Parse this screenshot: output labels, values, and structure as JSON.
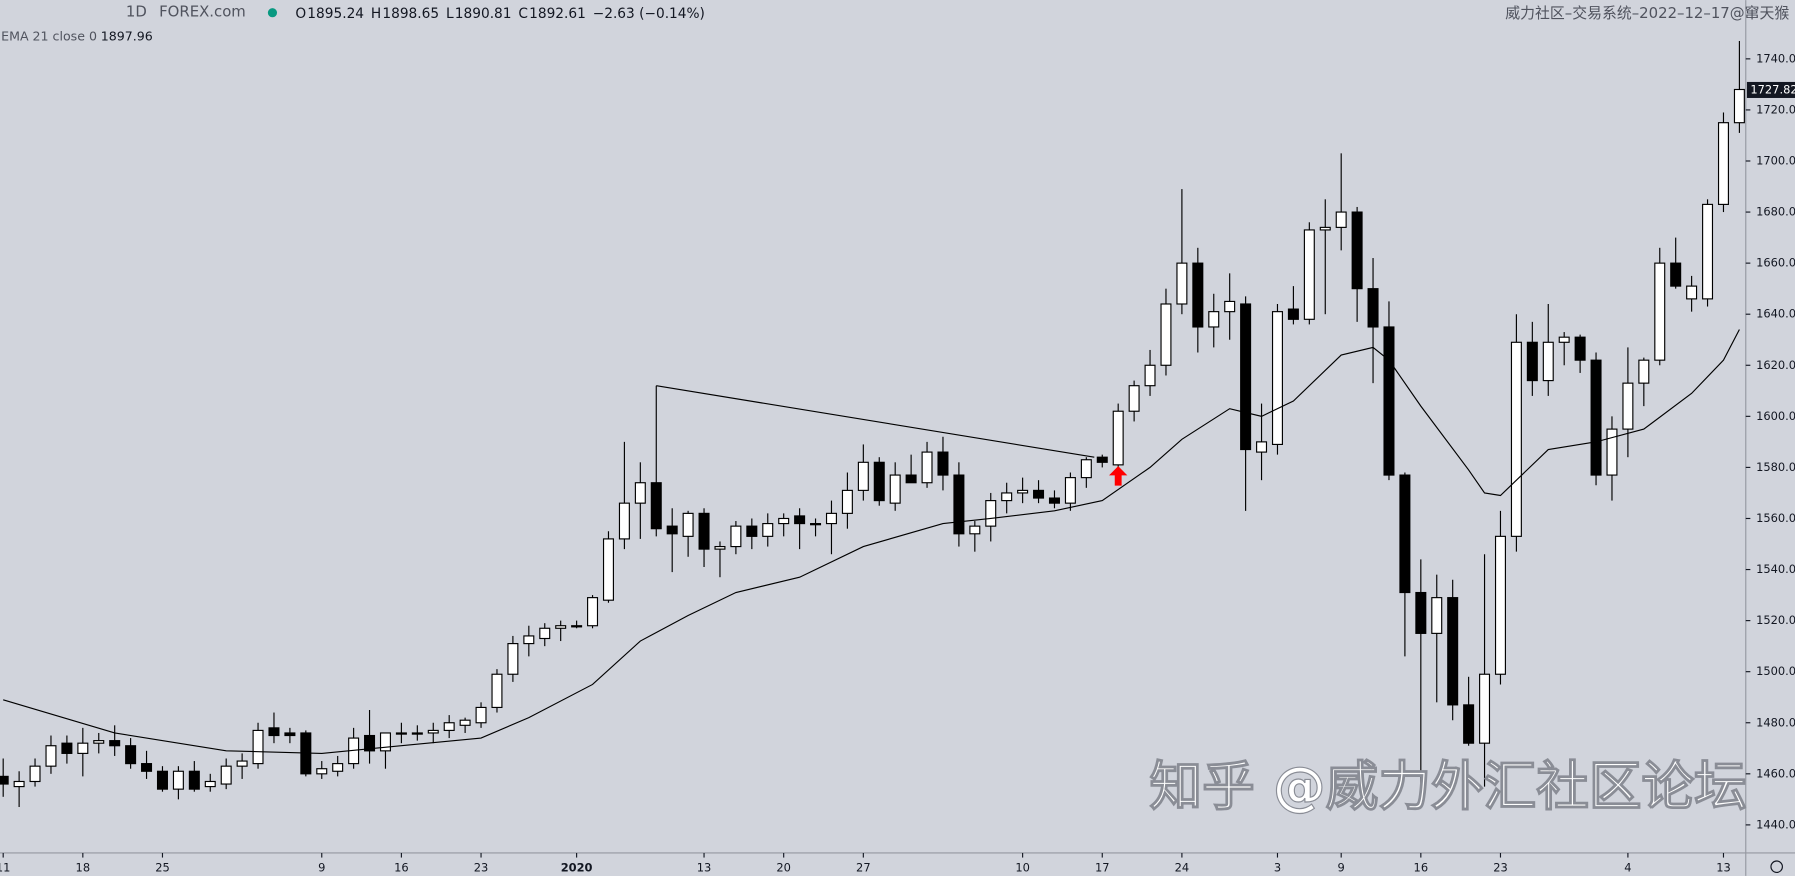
{
  "header": {
    "interval": "1D",
    "source": "FOREX.com",
    "ohlc": [
      {
        "label": "O",
        "value": "1895.24"
      },
      {
        "label": "H",
        "value": "1898.65"
      },
      {
        "label": "L",
        "value": "1890.81"
      },
      {
        "label": "C",
        "value": "1892.61"
      }
    ],
    "change": "−2.63 (−0.14%)",
    "credit": "威力社区–交易系统–2022–12–17@窜天猴",
    "indicator": "EMA 21 close 0",
    "indicator_value": "1897.96"
  },
  "watermark": "知乎 @威力外汇社区论坛",
  "chart_data": {
    "type": "candlestick",
    "x": [
      0,
      1,
      2,
      3,
      4,
      5,
      6,
      7,
      8,
      9,
      10,
      11,
      12,
      13,
      14,
      15,
      16,
      17,
      18,
      19,
      20,
      21,
      22,
      23,
      24,
      25,
      26,
      27,
      28,
      29,
      30,
      31,
      32,
      33,
      34,
      35,
      36,
      37,
      38,
      39,
      40,
      41,
      42,
      43,
      44,
      45,
      46,
      47,
      48,
      49,
      50,
      51,
      52,
      53,
      54,
      55,
      56,
      57,
      58,
      59,
      60,
      61,
      62,
      63,
      64,
      65,
      66,
      67,
      68,
      69,
      70,
      71,
      72,
      73,
      74,
      75,
      76,
      77,
      78,
      79,
      80,
      81,
      82,
      83,
      84,
      85,
      86,
      87,
      88,
      89,
      90,
      91,
      92,
      93,
      94,
      95,
      96,
      97,
      98,
      99,
      100,
      101,
      102,
      103,
      104,
      105,
      106,
      107,
      108,
      109
    ],
    "open": [
      1459,
      1455,
      1457,
      1463,
      1472,
      1468,
      1472,
      1473,
      1471,
      1464,
      1461,
      1454,
      1461,
      1455,
      1456,
      1463,
      1464,
      1478,
      1476,
      1476,
      1460,
      1461,
      1464,
      1475,
      1469,
      1476,
      1476,
      1476,
      1477,
      1479,
      1480,
      1486,
      1499,
      1511,
      1513,
      1517,
      1518,
      1518,
      1528,
      1552,
      1566,
      1574,
      1557,
      1553,
      1562,
      1548,
      1549,
      1557,
      1553,
      1558,
      1561,
      1558,
      1558,
      1562,
      1571,
      1582,
      1566,
      1577,
      1574,
      1586,
      1577,
      1554,
      1557,
      1567,
      1570,
      1571,
      1568,
      1566,
      1576,
      1584,
      1581,
      1602,
      1612,
      1620,
      1644,
      1660,
      1635,
      1641,
      1644,
      1586,
      1589,
      1642,
      1638,
      1673,
      1674,
      1680,
      1650,
      1635,
      1577,
      1531,
      1515,
      1529,
      1487,
      1472,
      1499,
      1553,
      1629,
      1614,
      1629,
      1631,
      1622,
      1577,
      1595,
      1613,
      1622,
      1660,
      1646,
      1646,
      1683,
      1715
    ],
    "high": [
      1466,
      1461,
      1466,
      1475,
      1475,
      1478,
      1476,
      1479,
      1474,
      1469,
      1463,
      1463,
      1465,
      1460,
      1466,
      1468,
      1480,
      1484,
      1478,
      1477,
      1465,
      1467,
      1478,
      1485,
      1476,
      1480,
      1479,
      1480,
      1483,
      1482,
      1488,
      1501,
      1514,
      1518,
      1519,
      1520,
      1520,
      1530,
      1555,
      1590,
      1582,
      1612,
      1564,
      1563,
      1564,
      1551,
      1559,
      1560,
      1562,
      1562,
      1564,
      1560,
      1567,
      1578,
      1589,
      1584,
      1582,
      1585,
      1590,
      1592,
      1582,
      1559,
      1570,
      1574,
      1576,
      1575,
      1571,
      1578,
      1584,
      1585,
      1605,
      1614,
      1626,
      1650,
      1689,
      1666,
      1648,
      1656,
      1647,
      1605,
      1644,
      1651,
      1676,
      1685,
      1703,
      1682,
      1662,
      1645,
      1578,
      1544,
      1538,
      1536,
      1498,
      1546,
      1563,
      1640,
      1637,
      1644,
      1633,
      1632,
      1625,
      1600,
      1627,
      1623,
      1666,
      1670,
      1655,
      1685,
      1719,
      1747
    ],
    "low": [
      1451,
      1447,
      1455,
      1460,
      1464,
      1459,
      1468,
      1467,
      1462,
      1458,
      1453,
      1450,
      1453,
      1453,
      1454,
      1458,
      1462,
      1472,
      1472,
      1459,
      1458,
      1459,
      1462,
      1464,
      1462,
      1472,
      1473,
      1472,
      1474,
      1476,
      1478,
      1484,
      1496,
      1506,
      1510,
      1512,
      1517,
      1517,
      1527,
      1548,
      1552,
      1553,
      1539,
      1545,
      1541,
      1537,
      1546,
      1548,
      1549,
      1553,
      1548,
      1553,
      1546,
      1556,
      1567,
      1565,
      1563,
      1574,
      1572,
      1571,
      1549,
      1547,
      1551,
      1562,
      1566,
      1566,
      1564,
      1563,
      1572,
      1580,
      1579,
      1598,
      1608,
      1616,
      1640,
      1625,
      1627,
      1630,
      1563,
      1575,
      1585,
      1636,
      1636,
      1640,
      1665,
      1637,
      1613,
      1575,
      1506,
      1451,
      1488,
      1481,
      1471,
      1455,
      1495,
      1547,
      1608,
      1608,
      1620,
      1617,
      1573,
      1567,
      1584,
      1604,
      1620,
      1650,
      1641,
      1643,
      1680,
      1711
    ],
    "close": [
      1456,
      1457,
      1463,
      1471,
      1468,
      1472,
      1473,
      1471,
      1464,
      1461,
      1454,
      1461,
      1454,
      1457,
      1463,
      1465,
      1477,
      1475,
      1475,
      1460,
      1462,
      1464,
      1474,
      1469,
      1476,
      1476,
      1476,
      1477,
      1480,
      1481,
      1486,
      1499,
      1511,
      1514,
      1517,
      1518,
      1518,
      1529,
      1552,
      1566,
      1574,
      1556,
      1554,
      1562,
      1548,
      1549,
      1557,
      1553,
      1558,
      1560,
      1558,
      1558,
      1562,
      1571,
      1582,
      1567,
      1577,
      1574,
      1586,
      1577,
      1554,
      1557,
      1567,
      1570,
      1571,
      1568,
      1566,
      1576,
      1583,
      1582,
      1602,
      1612,
      1620,
      1644,
      1660,
      1635,
      1641,
      1645,
      1587,
      1590,
      1641,
      1638,
      1673,
      1674,
      1680,
      1650,
      1635,
      1577,
      1531,
      1515,
      1529,
      1487,
      1472,
      1499,
      1553,
      1629,
      1614,
      1629,
      1631,
      1622,
      1577,
      1595,
      1613,
      1622,
      1660,
      1651,
      1651,
      1683,
      1715,
      1728
    ],
    "ema": {
      "name": "EMA 21 close 0",
      "x": [
        0,
        7,
        14,
        20,
        25,
        30,
        33,
        37,
        40,
        43,
        46,
        50,
        54,
        59,
        62,
        66,
        69,
        72,
        74,
        77,
        79,
        81,
        84,
        86,
        87,
        89,
        92,
        93,
        94,
        95,
        97,
        100,
        103,
        106,
        108,
        109
      ],
      "values": [
        1489,
        1476,
        1469,
        1468,
        1471,
        1474,
        1482,
        1495,
        1512,
        1522,
        1531,
        1537,
        1549,
        1558,
        1560,
        1563,
        1567,
        1580,
        1591,
        1603,
        1600,
        1606,
        1624,
        1627,
        1622,
        1604,
        1579,
        1570,
        1569,
        1575,
        1587,
        1590,
        1595,
        1609,
        1622,
        1634
      ]
    },
    "trendline": {
      "x": [
        41,
        68.5
      ],
      "values": [
        1612,
        1584
      ]
    },
    "arrow": {
      "x": 70,
      "value": 1576,
      "color": "#ff0000"
    },
    "last_price": {
      "value": 1727.82,
      "label": "1727.82"
    },
    "xlim": [
      -0.2,
      109.4
    ],
    "ylim": [
      1429,
      1763
    ],
    "yticks": [
      {
        "value": 1440,
        "label": "1440.00"
      },
      {
        "value": 1460,
        "label": "1460.00"
      },
      {
        "value": 1480,
        "label": "1480.00"
      },
      {
        "value": 1500,
        "label": "1500.00"
      },
      {
        "value": 1520,
        "label": "1520.00"
      },
      {
        "value": 1540,
        "label": "1540.00"
      },
      {
        "value": 1560,
        "label": "1560.00"
      },
      {
        "value": 1580,
        "label": "1580.00"
      },
      {
        "value": 1600,
        "label": "1600.00"
      },
      {
        "value": 1620,
        "label": "1620.00"
      },
      {
        "value": 1640,
        "label": "1640.00"
      },
      {
        "value": 1660,
        "label": "1660.00"
      },
      {
        "value": 1680,
        "label": "1680.00"
      },
      {
        "value": 1700,
        "label": "1700.00"
      },
      {
        "value": 1720,
        "label": "1720.00"
      },
      {
        "value": 1740,
        "label": "1740.00"
      }
    ],
    "xticks": [
      {
        "value": 0,
        "label": "11"
      },
      {
        "value": 5,
        "label": "18"
      },
      {
        "value": 10,
        "label": "25"
      },
      {
        "value": 20,
        "label": "9"
      },
      {
        "value": 25,
        "label": "16"
      },
      {
        "value": 30,
        "label": "23"
      },
      {
        "value": 36,
        "label": "2020"
      },
      {
        "value": 44,
        "label": "13"
      },
      {
        "value": 49,
        "label": "20"
      },
      {
        "value": 54,
        "label": "27"
      },
      {
        "value": 64,
        "label": "10"
      },
      {
        "value": 69,
        "label": "17"
      },
      {
        "value": 74,
        "label": "24"
      },
      {
        "value": 80,
        "label": "3"
      },
      {
        "value": 84,
        "label": "9"
      },
      {
        "value": 89,
        "label": "16"
      },
      {
        "value": 94,
        "label": "23"
      },
      {
        "value": 102,
        "label": "4"
      },
      {
        "value": 108,
        "label": "13"
      }
    ],
    "up_color": "#ffffff",
    "down_color": "#000000",
    "line_color": "#000000"
  }
}
